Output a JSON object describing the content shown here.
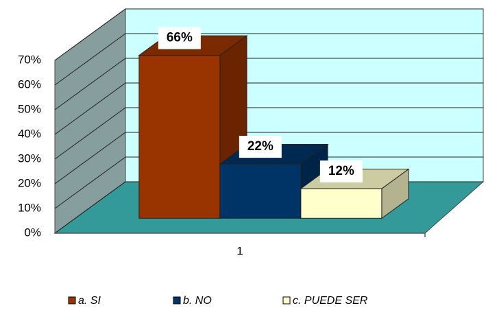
{
  "chart_data": {
    "type": "bar3d",
    "categories": [
      "1"
    ],
    "series": [
      {
        "name": "a. SI",
        "color": "#993300",
        "values": [
          66
        ],
        "value_labels": [
          "66%"
        ]
      },
      {
        "name": "b. NO",
        "color": "#003366",
        "values": [
          22
        ],
        "value_labels": [
          "22%"
        ]
      },
      {
        "name": "c. PUEDE SER",
        "color": "#FFFFCC",
        "values": [
          12
        ],
        "value_labels": [
          "12%"
        ]
      }
    ],
    "ylim": [
      0,
      70
    ],
    "yticks": [
      {
        "value": 0,
        "label": "0%"
      },
      {
        "value": 10,
        "label": "10%"
      },
      {
        "value": 20,
        "label": "20%"
      },
      {
        "value": 30,
        "label": "30%"
      },
      {
        "value": 40,
        "label": "40%"
      },
      {
        "value": 50,
        "label": "50%"
      },
      {
        "value": 60,
        "label": "60%"
      },
      {
        "value": 70,
        "label": "70%"
      }
    ],
    "grid": true,
    "legend": "bottom"
  }
}
